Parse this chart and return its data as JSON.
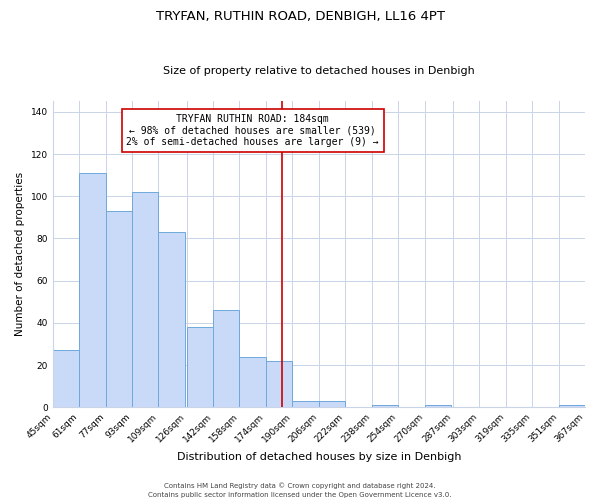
{
  "title": "TRYFAN, RUTHIN ROAD, DENBIGH, LL16 4PT",
  "subtitle": "Size of property relative to detached houses in Denbigh",
  "xlabel": "Distribution of detached houses by size in Denbigh",
  "ylabel": "Number of detached properties",
  "bin_labels": [
    "45sqm",
    "61sqm",
    "77sqm",
    "93sqm",
    "109sqm",
    "126sqm",
    "142sqm",
    "158sqm",
    "174sqm",
    "190sqm",
    "206sqm",
    "222sqm",
    "238sqm",
    "254sqm",
    "270sqm",
    "287sqm",
    "303sqm",
    "319sqm",
    "335sqm",
    "351sqm",
    "367sqm"
  ],
  "bin_edges": [
    45,
    61,
    77,
    93,
    109,
    126,
    142,
    158,
    174,
    190,
    206,
    222,
    238,
    254,
    270,
    287,
    303,
    319,
    335,
    351,
    367
  ],
  "bar_heights": [
    27,
    111,
    93,
    102,
    83,
    38,
    46,
    24,
    22,
    3,
    3,
    0,
    1,
    0,
    1,
    0,
    0,
    0,
    0,
    1
  ],
  "bar_color": "#c9daf8",
  "bar_edge_color": "#6fa8dc",
  "vline_x": 184,
  "vline_color": "#cc0000",
  "annotation_title": "TRYFAN RUTHIN ROAD: 184sqm",
  "annotation_line1": "← 98% of detached houses are smaller (539)",
  "annotation_line2": "2% of semi-detached houses are larger (9) →",
  "annotation_box_color": "#cc0000",
  "annotation_bg": "#ffffff",
  "ylim": [
    0,
    145
  ],
  "yticks": [
    0,
    20,
    40,
    60,
    80,
    100,
    120,
    140
  ],
  "footer1": "Contains HM Land Registry data © Crown copyright and database right 2024.",
  "footer2": "Contains public sector information licensed under the Open Government Licence v3.0.",
  "bg_color": "#ffffff",
  "grid_color": "#c9d4e8",
  "title_fontsize": 9.5,
  "subtitle_fontsize": 8,
  "xlabel_fontsize": 8,
  "ylabel_fontsize": 7.5,
  "tick_fontsize": 6.5,
  "annotation_fontsize": 7,
  "footer_fontsize": 5
}
